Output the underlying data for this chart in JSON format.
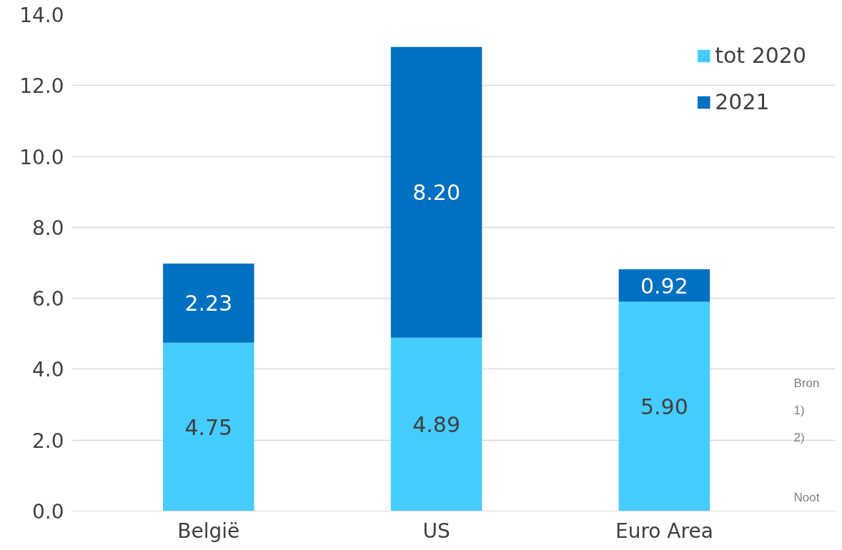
{
  "chart_data": {
    "type": "bar",
    "stacked": true,
    "categories": [
      "België",
      "US",
      "Euro Area"
    ],
    "series": [
      {
        "name": "tot 2020",
        "color": "#45ccff",
        "values": [
          4.75,
          4.89,
          5.9
        ],
        "value_labels": [
          "4.75",
          "4.89",
          "5.90"
        ]
      },
      {
        "name": "2021",
        "color": "#0070c0",
        "values": [
          2.23,
          8.2,
          0.92
        ],
        "value_labels": [
          "2.23",
          "8.20",
          "0.92"
        ]
      }
    ],
    "ylim": [
      0,
      14
    ],
    "yticks": [
      {
        "value": 0,
        "label": "0.0"
      },
      {
        "value": 2,
        "label": "2.0"
      },
      {
        "value": 4,
        "label": "4.0"
      },
      {
        "value": 6,
        "label": "6.0"
      },
      {
        "value": 8,
        "label": "8.0"
      },
      {
        "value": 10,
        "label": "10.0"
      },
      {
        "value": 12,
        "label": "12.0"
      },
      {
        "value": 14,
        "label": "14.0"
      }
    ],
    "grid": "y",
    "legend": "top right",
    "annotations": [
      "Bron",
      "1)",
      "2)",
      "Noot"
    ]
  }
}
